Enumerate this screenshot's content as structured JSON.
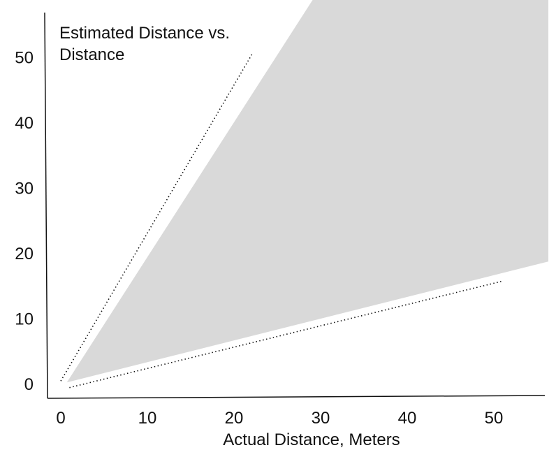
{
  "chart_data": {
    "type": "area",
    "title": [
      "Estimated Distance vs.",
      "Distance"
    ],
    "xlabel": "Actual Distance, Meters",
    "ylabel": "",
    "x_ticks": [
      "0",
      "10",
      "20",
      "30",
      "40",
      "50"
    ],
    "y_ticks": [
      "0",
      "10",
      "20",
      "30",
      "40",
      "50"
    ],
    "xlim": [
      0,
      55
    ],
    "ylim": [
      -2,
      55
    ],
    "grid": false,
    "shaded_region": {
      "color": "#d9d9d9",
      "polygon": [
        [
          0.7,
          0.3
        ],
        [
          29.5,
          59.7
        ],
        [
          56.3,
          59.7
        ],
        [
          56.3,
          18.8
        ]
      ]
    },
    "dotted_bounds": [
      {
        "x": [
          0,
          22.2
        ],
        "y": [
          0.5,
          50.8
        ]
      },
      {
        "x": [
          1.0,
          51.0
        ],
        "y": [
          -0.5,
          15.8
        ]
      }
    ]
  }
}
